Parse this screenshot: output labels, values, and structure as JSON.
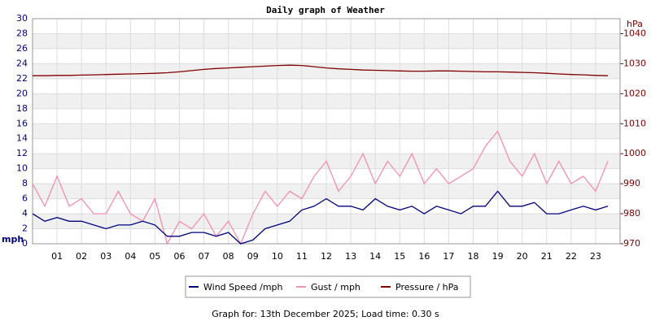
{
  "chart_data": {
    "type": "line",
    "title": "Daily graph of Weather",
    "y_label": "mph",
    "y2_label": "hPa",
    "footer": "Graph for: 13th December 2025; Load time: 0.30 s",
    "grid": true,
    "legend": "bottom",
    "xlim": [
      0,
      24
    ],
    "xticks": [
      {
        "value": 1,
        "label": "01"
      },
      {
        "value": 2,
        "label": "02"
      },
      {
        "value": 3,
        "label": "03"
      },
      {
        "value": 4,
        "label": "04"
      },
      {
        "value": 5,
        "label": "05"
      },
      {
        "value": 6,
        "label": "06"
      },
      {
        "value": 7,
        "label": "07"
      },
      {
        "value": 8,
        "label": "08"
      },
      {
        "value": 9,
        "label": "09"
      },
      {
        "value": 10,
        "label": "10"
      },
      {
        "value": 11,
        "label": "11"
      },
      {
        "value": 12,
        "label": "12"
      },
      {
        "value": 13,
        "label": "13"
      },
      {
        "value": 14,
        "label": "14"
      },
      {
        "value": 15,
        "label": "15"
      },
      {
        "value": 16,
        "label": "16"
      },
      {
        "value": 17,
        "label": "17"
      },
      {
        "value": 18,
        "label": "18"
      },
      {
        "value": 19,
        "label": "19"
      },
      {
        "value": 20,
        "label": "20"
      },
      {
        "value": 21,
        "label": "21"
      },
      {
        "value": 22,
        "label": "22"
      },
      {
        "value": 23,
        "label": "23"
      }
    ],
    "ylim": [
      0,
      30
    ],
    "yticks": [
      0,
      2,
      4,
      6,
      8,
      10,
      12,
      14,
      16,
      18,
      20,
      22,
      24,
      26,
      28,
      30
    ],
    "y2lim": [
      970,
      1045
    ],
    "y2ticks": [
      970,
      980,
      990,
      1000,
      1010,
      1020,
      1030,
      1040
    ],
    "x": [
      0,
      0.5,
      1,
      1.5,
      2,
      2.5,
      3,
      3.5,
      4,
      4.5,
      5,
      5.5,
      6,
      6.5,
      7,
      7.5,
      8,
      8.5,
      9,
      9.5,
      10,
      10.5,
      11,
      11.5,
      12,
      12.5,
      13,
      13.5,
      14,
      14.5,
      15,
      15.5,
      16,
      16.5,
      17,
      17.5,
      18,
      18.5,
      19,
      19.5,
      20,
      20.5,
      21,
      21.5,
      22,
      22.5,
      23,
      23.5
    ],
    "series": [
      {
        "name": "Gust / mph",
        "color": "#f48fb1",
        "values": [
          8,
          5,
          9,
          5,
          6,
          4,
          4,
          7,
          4,
          3,
          6,
          0,
          3,
          2,
          4,
          1,
          3,
          0,
          4,
          7,
          5,
          7,
          6,
          9,
          11,
          7,
          9,
          12,
          8,
          11,
          9,
          12,
          8,
          10,
          8,
          9,
          10,
          13,
          15,
          11,
          9,
          12,
          8,
          11,
          8,
          9,
          7,
          11
        ]
      },
      {
        "name": "Wind Speed /mph",
        "color": "#000080",
        "values": [
          4,
          3,
          3.5,
          3,
          3,
          2.5,
          2,
          2.5,
          2.5,
          3,
          2.5,
          1,
          1,
          1.5,
          1.5,
          1,
          1.5,
          0,
          0.5,
          2,
          2.5,
          3,
          4.5,
          5,
          6,
          5,
          5,
          4.5,
          6,
          5,
          4.5,
          5,
          4,
          5,
          4.5,
          4,
          5,
          5,
          7,
          5,
          5,
          5.5,
          4,
          4,
          4.5,
          5,
          4.5,
          5
        ]
      },
      {
        "name": "Pressure / hPa",
        "color": "#800000",
        "axis": "y2",
        "values": [
          1026,
          1026,
          1026.1,
          1026.1,
          1026.2,
          1026.3,
          1026.4,
          1026.5,
          1026.6,
          1026.7,
          1026.8,
          1027,
          1027.3,
          1027.7,
          1028.1,
          1028.4,
          1028.6,
          1028.8,
          1029,
          1029.2,
          1029.4,
          1029.5,
          1029.4,
          1029,
          1028.6,
          1028.3,
          1028.1,
          1027.9,
          1027.8,
          1027.7,
          1027.6,
          1027.5,
          1027.5,
          1027.6,
          1027.6,
          1027.5,
          1027.4,
          1027.3,
          1027.3,
          1027.2,
          1027.1,
          1027,
          1026.8,
          1026.6,
          1026.4,
          1026.3,
          1026.1,
          1026
        ]
      }
    ]
  }
}
